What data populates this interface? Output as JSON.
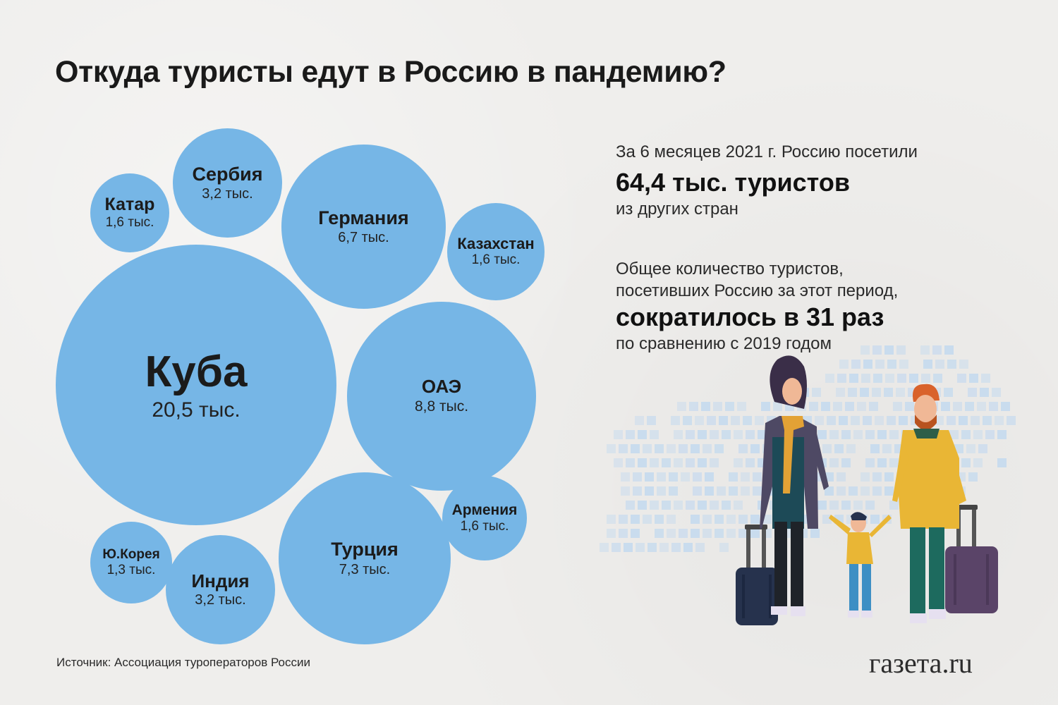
{
  "title": "Откуда туристы едут в Россию в пандемию?",
  "bubbles": [
    {
      "name": "Куба",
      "value": "20,5 тыс."
    },
    {
      "name": "ОАЭ",
      "value": "8,8 тыс."
    },
    {
      "name": "Турция",
      "value": "7,3 тыс."
    },
    {
      "name": "Германия",
      "value": "6,7 тыс."
    },
    {
      "name": "Сербия",
      "value": "3,2 тыс."
    },
    {
      "name": "Индия",
      "value": "3,2 тыс."
    },
    {
      "name": "Катар",
      "value": "1,6 тыс."
    },
    {
      "name": "Казахстан",
      "value": "1,6 тыс."
    },
    {
      "name": "Армения",
      "value": "1,6 тыс."
    },
    {
      "name": "Ю.Корея",
      "value": "1,3 тыс."
    }
  ],
  "info": {
    "line1": "За 6 месяцев 2021 г. Россию посетили",
    "line2": "64,4 тыс. туристов",
    "line3": "из других стран",
    "line4": "Общее количество туристов,",
    "line5": "посетивших Россию за этот период,",
    "line6": "сократилось в 31 раз",
    "line7": "по сравнению с 2019 годом"
  },
  "source": "Источник: Ассоциация туроператоров России",
  "logo": "газета.ru",
  "colors": {
    "bubble": "#76b6e6",
    "background": "#efeeec",
    "map_squares": "#c3d9ef"
  }
}
